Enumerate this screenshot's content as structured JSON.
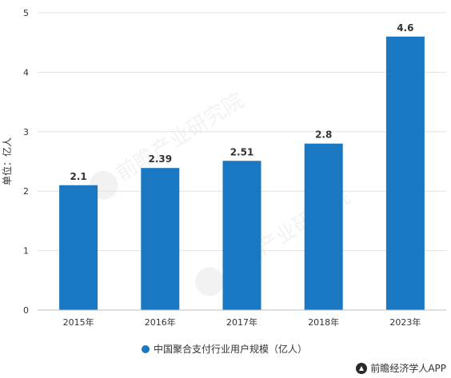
{
  "chart_data": {
    "type": "bar",
    "categories": [
      "2015年",
      "2016年",
      "2017年",
      "2018年",
      "2023年"
    ],
    "series": [
      {
        "name": "中国聚合支付行业用户规模（亿人）",
        "values": [
          2.1,
          2.39,
          2.51,
          2.8,
          4.6
        ]
      }
    ],
    "data_labels": [
      "2.1",
      "2.39",
      "2.51",
      "2.8",
      "4.6"
    ],
    "ylabel": "单位：亿人",
    "xlabel": "",
    "ylim": [
      0,
      5
    ],
    "yticks": [
      0,
      1,
      2,
      3,
      4,
      5
    ],
    "grid": true,
    "legend_position": "bottom",
    "bar_color": "#1a78c2"
  },
  "watermark": {
    "text": "前瞻产业研究院"
  },
  "footer": {
    "credit": "前瞻经济学人APP"
  }
}
